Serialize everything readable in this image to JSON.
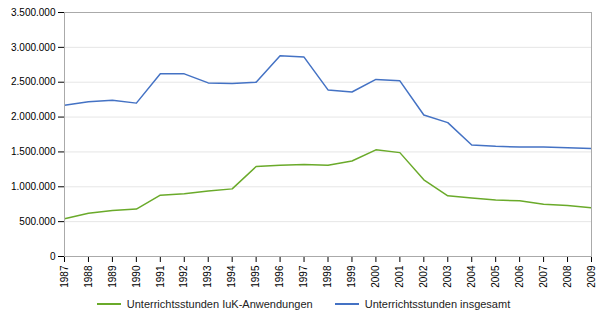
{
  "chart_data": {
    "type": "line",
    "x": [
      1987,
      1988,
      1989,
      1990,
      1991,
      1992,
      1993,
      1994,
      1995,
      1996,
      1997,
      1998,
      1999,
      2000,
      2001,
      2002,
      2003,
      2004,
      2005,
      2006,
      2007,
      2008,
      2009
    ],
    "series": [
      {
        "name": "Unterrichtsstunden IuK-Anwendungen",
        "color": "#6aaa2a",
        "values": [
          540000,
          620000,
          660000,
          680000,
          880000,
          900000,
          940000,
          970000,
          1290000,
          1310000,
          1320000,
          1310000,
          1370000,
          1530000,
          1490000,
          1100000,
          870000,
          840000,
          810000,
          800000,
          750000,
          730000,
          700000
        ]
      },
      {
        "name": "Unterrichtsstunden insgesamt",
        "color": "#4472c4",
        "values": [
          2170000,
          2220000,
          2240000,
          2200000,
          2620000,
          2620000,
          2490000,
          2480000,
          2500000,
          2880000,
          2860000,
          2390000,
          2360000,
          2540000,
          2520000,
          2030000,
          1920000,
          1600000,
          1580000,
          1570000,
          1570000,
          1560000,
          1550000
        ]
      }
    ],
    "xlim": [
      1987,
      2009
    ],
    "xticks": [
      1987,
      1988,
      1989,
      1990,
      1991,
      1992,
      1993,
      1994,
      1995,
      1996,
      1997,
      1998,
      1999,
      2000,
      2001,
      2002,
      2003,
      2004,
      2005,
      2006,
      2007,
      2008,
      2009
    ],
    "ylim": [
      0,
      3500000
    ],
    "yticks": [
      0,
      {
        "value": 500000,
        "label": "500.000"
      },
      {
        "value": 1000000,
        "label": "1.000.000"
      },
      {
        "value": 1500000,
        "label": "1.500.000"
      },
      {
        "value": 2000000,
        "label": "2.000.000"
      },
      {
        "value": 2500000,
        "label": "2.500.000"
      },
      {
        "value": 3000000,
        "label": "3.000.000"
      },
      {
        "value": 3500000,
        "label": "3.500.000"
      }
    ],
    "grid": true,
    "legend": "bottom"
  }
}
